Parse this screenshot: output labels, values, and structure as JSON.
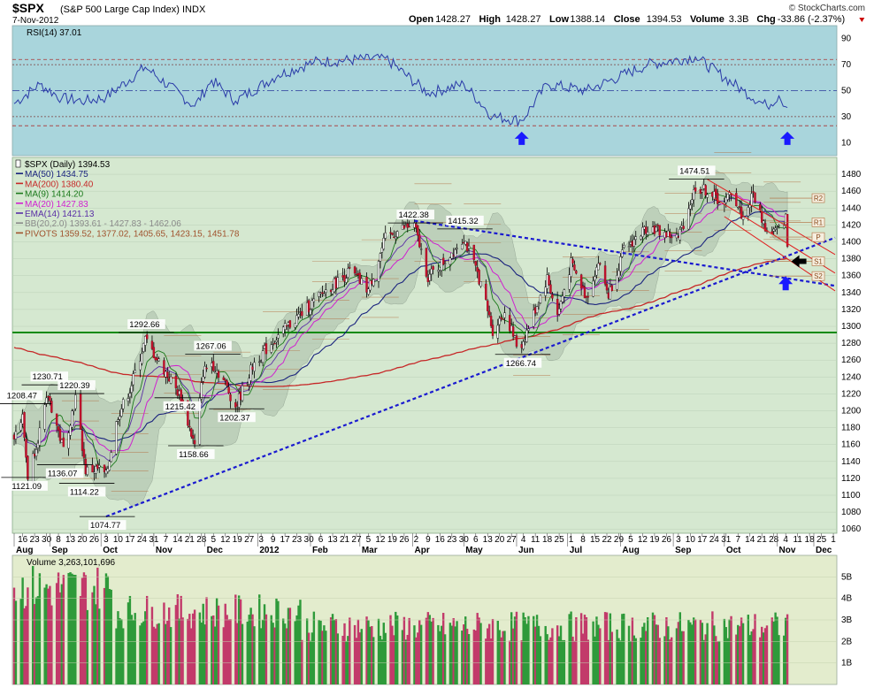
{
  "header": {
    "symbol": "$SPX",
    "name": "(S&P 500 Large Cap Index) INDX",
    "date": "7-Nov-2012",
    "watermark": "© StockCharts.com",
    "ohlc": [
      {
        "label": "Open",
        "value": "1428.27"
      },
      {
        "label": "High",
        "value": "1428.27"
      },
      {
        "label": "Low",
        "value": "1388.14"
      },
      {
        "label": "Close",
        "value": "1394.53"
      },
      {
        "label": "Volume",
        "value": "3.3B"
      },
      {
        "label": "Chg",
        "value": "-33.86 (-2.37%)"
      }
    ]
  },
  "rsi_panel": {
    "label": "RSI(14) 37.01",
    "ticks": [
      "90",
      "70",
      "50",
      "30",
      "10"
    ]
  },
  "price_panel": {
    "legend": [
      {
        "text": "$SPX (Daily) 1394.53",
        "color": "#000000"
      },
      {
        "text": "MA(50) 1434.75",
        "color": "#1a237e"
      },
      {
        "text": "MA(200) 1380.40",
        "color": "#c62828"
      },
      {
        "text": "MA(9) 1414.20",
        "color": "#1b7a1b"
      },
      {
        "text": "MA(20) 1427.83",
        "color": "#d020d0"
      },
      {
        "text": "EMA(14) 1421.13",
        "color": "#5a2ea6"
      },
      {
        "text": "BB(20,2.0) 1393.61 - 1427.83 - 1462.06",
        "color": "#8a8a8a"
      },
      {
        "text": "PIVOTS 1359.52, 1377.02, 1405.65, 1423.15, 1451.78",
        "color": "#a0522d"
      }
    ],
    "ticks": [
      "1480",
      "1460",
      "1440",
      "1420",
      "1400",
      "1380",
      "1360",
      "1340",
      "1320",
      "1300",
      "1280",
      "1260",
      "1240",
      "1220",
      "1200",
      "1180",
      "1160",
      "1140",
      "1120",
      "1100",
      "1080",
      "1060"
    ],
    "pivot_tags": [
      "R2",
      "R1",
      "P",
      "S1",
      "S2"
    ]
  },
  "volume_panel": {
    "label": "Volume 3,263,101,696",
    "ticks": [
      "5B",
      "4B",
      "3B",
      "2B",
      "1B"
    ]
  },
  "x_axis": {
    "days": [
      "16",
      "23",
      "30",
      "8",
      "13",
      "20",
      "26",
      "3",
      "10",
      "17",
      "24",
      "31",
      "7",
      "14",
      "21",
      "28",
      "5",
      "12",
      "19",
      "27",
      "3",
      "9",
      "17",
      "23",
      "30",
      "6",
      "13",
      "21",
      "27",
      "5",
      "12",
      "19",
      "26",
      "2",
      "9",
      "16",
      "23",
      "30",
      "6",
      "13",
      "20",
      "27",
      "4",
      "11",
      "18",
      "25",
      "1",
      "8",
      "15",
      "22",
      "29",
      "5",
      "12",
      "19",
      "26",
      "3",
      "10",
      "17",
      "24",
      "31",
      "7",
      "14",
      "21",
      "28",
      "4",
      "11",
      "18",
      "25",
      "1",
      "8",
      "15",
      "22",
      "29",
      "6",
      "13",
      "20",
      "27",
      "3",
      "10",
      "17",
      "24",
      "31",
      "7",
      "14",
      "21",
      "28",
      "4"
    ],
    "months": [
      "Aug",
      "Sep",
      "Oct",
      "Nov",
      "Dec",
      "2012",
      "Feb",
      "Mar",
      "Apr",
      "May",
      "Jun",
      "Jul",
      "Aug",
      "Sep",
      "Oct",
      "Nov",
      "Dec"
    ]
  },
  "chart_data": {
    "type": "candlestick",
    "title": "$SPX (S&P 500 Large Cap Index) INDX",
    "x_range": [
      "2011-08-11",
      "2012-12-05"
    ],
    "ylim": [
      1055,
      1500
    ],
    "price_labels": [
      {
        "date": "2011-08-16",
        "value": 1208.47
      },
      {
        "date": "2011-08-19",
        "value": 1121.09
      },
      {
        "date": "2011-08-31",
        "value": 1230.71
      },
      {
        "date": "2011-09-09",
        "value": 1136.07
      },
      {
        "date": "2011-09-16",
        "value": 1220.39
      },
      {
        "date": "2011-09-22",
        "value": 1114.22
      },
      {
        "date": "2011-10-04",
        "value": 1074.77
      },
      {
        "date": "2011-10-27",
        "value": 1292.66
      },
      {
        "date": "2011-11-17",
        "value": 1215.42
      },
      {
        "date": "2011-11-25",
        "value": 1158.66
      },
      {
        "date": "2011-12-05",
        "value": 1267.06
      },
      {
        "date": "2011-12-19",
        "value": 1202.37
      },
      {
        "date": "2012-04-02",
        "value": 1422.38
      },
      {
        "date": "2012-05-01",
        "value": 1415.32
      },
      {
        "date": "2012-06-04",
        "value": 1266.74
      },
      {
        "date": "2012-09-14",
        "value": 1474.51
      }
    ],
    "close_path": [
      {
        "date": "2011-08-11",
        "value": 1172
      },
      {
        "date": "2011-08-16",
        "value": 1192
      },
      {
        "date": "2011-08-19",
        "value": 1123
      },
      {
        "date": "2011-08-26",
        "value": 1176
      },
      {
        "date": "2011-08-31",
        "value": 1218
      },
      {
        "date": "2011-09-09",
        "value": 1154
      },
      {
        "date": "2011-09-16",
        "value": 1216
      },
      {
        "date": "2011-09-22",
        "value": 1129
      },
      {
        "date": "2011-09-30",
        "value": 1131
      },
      {
        "date": "2011-10-04",
        "value": 1123
      },
      {
        "date": "2011-10-11",
        "value": 1195
      },
      {
        "date": "2011-10-18",
        "value": 1225
      },
      {
        "date": "2011-10-27",
        "value": 1284
      },
      {
        "date": "2011-11-03",
        "value": 1261
      },
      {
        "date": "2011-11-10",
        "value": 1239
      },
      {
        "date": "2011-11-17",
        "value": 1216
      },
      {
        "date": "2011-11-25",
        "value": 1158
      },
      {
        "date": "2011-11-30",
        "value": 1246
      },
      {
        "date": "2011-12-05",
        "value": 1257
      },
      {
        "date": "2011-12-12",
        "value": 1236
      },
      {
        "date": "2011-12-19",
        "value": 1205
      },
      {
        "date": "2011-12-30",
        "value": 1257
      },
      {
        "date": "2012-01-13",
        "value": 1289
      },
      {
        "date": "2012-01-27",
        "value": 1316
      },
      {
        "date": "2012-02-10",
        "value": 1342
      },
      {
        "date": "2012-02-24",
        "value": 1365
      },
      {
        "date": "2012-03-06",
        "value": 1343
      },
      {
        "date": "2012-03-16",
        "value": 1404
      },
      {
        "date": "2012-03-26",
        "value": 1416
      },
      {
        "date": "2012-04-02",
        "value": 1419
      },
      {
        "date": "2012-04-10",
        "value": 1358
      },
      {
        "date": "2012-04-20",
        "value": 1378
      },
      {
        "date": "2012-05-01",
        "value": 1405
      },
      {
        "date": "2012-05-10",
        "value": 1357
      },
      {
        "date": "2012-05-18",
        "value": 1295
      },
      {
        "date": "2012-05-25",
        "value": 1317
      },
      {
        "date": "2012-06-01",
        "value": 1278
      },
      {
        "date": "2012-06-04",
        "value": 1278
      },
      {
        "date": "2012-06-19",
        "value": 1357
      },
      {
        "date": "2012-06-25",
        "value": 1313
      },
      {
        "date": "2012-07-03",
        "value": 1374
      },
      {
        "date": "2012-07-12",
        "value": 1334
      },
      {
        "date": "2012-07-19",
        "value": 1376
      },
      {
        "date": "2012-07-25",
        "value": 1337
      },
      {
        "date": "2012-08-03",
        "value": 1390
      },
      {
        "date": "2012-08-17",
        "value": 1418
      },
      {
        "date": "2012-08-27",
        "value": 1410
      },
      {
        "date": "2012-09-04",
        "value": 1404
      },
      {
        "date": "2012-09-14",
        "value": 1465
      },
      {
        "date": "2012-09-21",
        "value": 1460
      },
      {
        "date": "2012-10-01",
        "value": 1444
      },
      {
        "date": "2012-10-05",
        "value": 1460
      },
      {
        "date": "2012-10-12",
        "value": 1428
      },
      {
        "date": "2012-10-18",
        "value": 1457
      },
      {
        "date": "2012-10-26",
        "value": 1411
      },
      {
        "date": "2012-11-02",
        "value": 1414
      },
      {
        "date": "2012-11-06",
        "value": 1428
      },
      {
        "date": "2012-11-07",
        "value": 1394.53
      }
    ],
    "horizontal_support": 1292.66,
    "trendlines": [
      {
        "name": "lower uptrend",
        "from": {
          "date": "2011-10-04",
          "value": 1074.77
        },
        "to": {
          "date": "2012-12-05",
          "value": 1405
        }
      },
      {
        "name": "upper downtrend",
        "from": {
          "date": "2012-04-02",
          "value": 1425
        },
        "to": {
          "date": "2012-12-05",
          "value": 1348
        }
      }
    ],
    "channel_lines": [
      {
        "from": {
          "date": "2012-09-21",
          "value": 1474
        },
        "to": {
          "date": "2012-12-05",
          "value": 1385
        }
      },
      {
        "from": {
          "date": "2012-09-25",
          "value": 1452
        },
        "to": {
          "date": "2012-12-05",
          "value": 1363
        }
      },
      {
        "from": {
          "date": "2012-10-01",
          "value": 1430
        },
        "to": {
          "date": "2012-12-05",
          "value": 1342
        }
      }
    ],
    "rsi": {
      "ylim": [
        0,
        100
      ],
      "levels": [
        70,
        50,
        30
      ],
      "overbought_line": 74,
      "oversold_line": 23,
      "points": [
        {
          "date": "2011-08-11",
          "value": 40
        },
        {
          "date": "2011-08-26",
          "value": 55
        },
        {
          "date": "2011-09-08",
          "value": 44
        },
        {
          "date": "2011-09-22",
          "value": 42
        },
        {
          "date": "2011-10-04",
          "value": 45
        },
        {
          "date": "2011-10-27",
          "value": 68
        },
        {
          "date": "2011-11-25",
          "value": 38
        },
        {
          "date": "2011-12-05",
          "value": 58
        },
        {
          "date": "2011-12-19",
          "value": 42
        },
        {
          "date": "2012-01-13",
          "value": 62
        },
        {
          "date": "2012-02-03",
          "value": 72
        },
        {
          "date": "2012-03-16",
          "value": 75
        },
        {
          "date": "2012-04-10",
          "value": 48
        },
        {
          "date": "2012-05-01",
          "value": 55
        },
        {
          "date": "2012-05-18",
          "value": 30
        },
        {
          "date": "2012-06-04",
          "value": 27
        },
        {
          "date": "2012-06-19",
          "value": 55
        },
        {
          "date": "2012-07-12",
          "value": 50
        },
        {
          "date": "2012-08-17",
          "value": 70
        },
        {
          "date": "2012-09-14",
          "value": 76
        },
        {
          "date": "2012-10-12",
          "value": 50
        },
        {
          "date": "2012-10-26",
          "value": 38
        },
        {
          "date": "2012-11-02",
          "value": 46
        },
        {
          "date": "2012-11-07",
          "value": 37.01
        }
      ],
      "arrows": [
        {
          "date": "2012-06-04",
          "value": 13
        },
        {
          "date": "2012-11-07",
          "value": 13
        }
      ]
    },
    "volume": {
      "ylim": [
        0,
        6
      ],
      "unit": "B",
      "last": 3.263101696
    },
    "annotations": [
      {
        "type": "arrow-up",
        "color": "#1a1aff",
        "date": "2012-11-06",
        "value": 1350
      },
      {
        "type": "arrow-left",
        "color": "#000000",
        "date": "2012-11-14",
        "value": 1377
      }
    ]
  }
}
